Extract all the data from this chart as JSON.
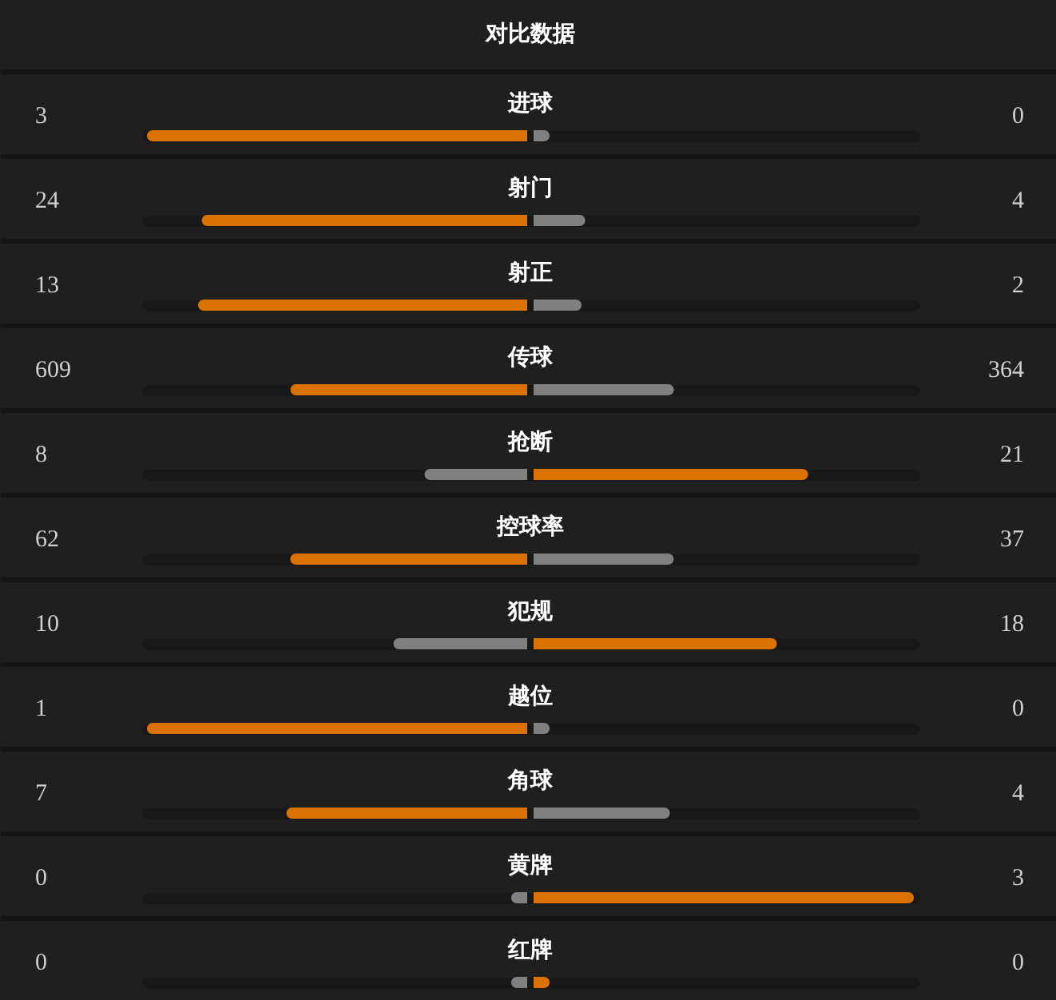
{
  "chart_data": {
    "type": "other",
    "title": "对比数据",
    "categories": [
      "进球",
      "射门",
      "射正",
      "传球",
      "抢断",
      "控球率",
      "犯规",
      "越位",
      "角球",
      "黄牌",
      "红牌"
    ],
    "series": [
      {
        "colors": [
          "#d97200",
          "#d97200",
          "#d97200",
          "#d97200",
          "#808080",
          "#d97200",
          "#808080",
          "#d97200",
          "#d97200",
          "#808080",
          "#808080"
        ],
        "values": [
          3,
          24,
          13,
          609,
          8,
          62,
          10,
          1,
          7,
          0,
          0
        ]
      },
      {
        "colors": [
          "#808080",
          "#808080",
          "#808080",
          "#808080",
          "#d97200",
          "#808080",
          "#d97200",
          "#808080",
          "#808080",
          "#d97200",
          "#d97200"
        ],
        "values": [
          0,
          4,
          2,
          364,
          21,
          37,
          18,
          0,
          4,
          3,
          0
        ]
      }
    ],
    "data_labels": true
  }
}
